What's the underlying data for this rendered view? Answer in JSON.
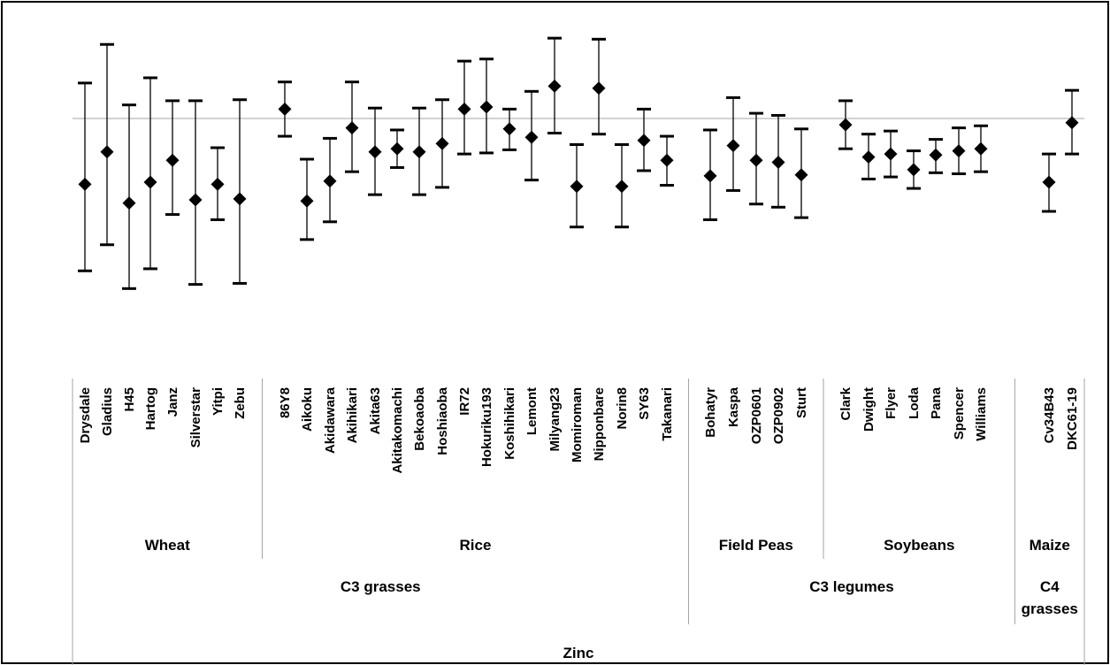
{
  "chart_data": {
    "type": "scatter",
    "style": "dot-with-error-bars",
    "grid": false,
    "reference_line": 0,
    "ylim": [
      -2.1,
      1.3
    ],
    "categories": [
      "Drysdale",
      "Gladius",
      "H45",
      "Hartog",
      "Janz",
      "Silverstar",
      "Yitpi",
      "Zebu",
      "86Y8",
      "Aikoku",
      "Akidawara",
      "Akihikari",
      "Akita63",
      "Akitakomachi",
      "Bekoaoba",
      "Hoshiaoba",
      "IR72",
      "Hokuriku193",
      "Koshihikari",
      "Lemont",
      "Milyang23",
      "Momiroman",
      "Nipponbare",
      "Norin8",
      "SY63",
      "Takanari",
      "Bohatyr",
      "Kaspa",
      "OZP0601",
      "OZP0902",
      "Sturt",
      "Clark",
      "Dwight",
      "Flyer",
      "Loda",
      "Pana",
      "Spencer",
      "Williams",
      "Cv34B43",
      "DKC61-19"
    ],
    "values": [
      -0.63,
      -0.32,
      -0.81,
      -0.61,
      -0.4,
      -0.78,
      -0.63,
      -0.77,
      0.09,
      -0.79,
      -0.6,
      -0.09,
      -0.32,
      -0.29,
      -0.32,
      -0.24,
      0.09,
      0.11,
      -0.1,
      -0.18,
      0.31,
      -0.65,
      0.29,
      -0.65,
      -0.21,
      -0.4,
      -0.55,
      -0.26,
      -0.4,
      -0.42,
      -0.54,
      -0.06,
      -0.37,
      -0.34,
      -0.49,
      -0.35,
      -0.31,
      -0.29,
      -0.61,
      -0.04
    ],
    "lower": [
      -1.46,
      -1.21,
      -1.63,
      -1.44,
      -0.92,
      -1.59,
      -0.97,
      -1.58,
      -0.17,
      -1.16,
      -0.99,
      -0.51,
      -0.73,
      -0.47,
      -0.73,
      -0.66,
      -0.34,
      -0.33,
      -0.3,
      -0.59,
      -0.14,
      -1.04,
      -0.15,
      -1.04,
      -0.5,
      -0.64,
      -0.97,
      -0.69,
      -0.82,
      -0.85,
      -0.95,
      -0.29,
      -0.58,
      -0.56,
      -0.67,
      -0.52,
      -0.53,
      -0.51,
      -0.89,
      -0.34
    ],
    "upper": [
      0.34,
      0.71,
      0.13,
      0.39,
      0.17,
      0.17,
      -0.28,
      0.18,
      0.35,
      -0.39,
      -0.19,
      0.35,
      0.1,
      -0.11,
      0.1,
      0.18,
      0.55,
      0.57,
      0.09,
      0.26,
      0.77,
      -0.25,
      0.76,
      -0.25,
      0.09,
      -0.17,
      -0.11,
      0.2,
      0.05,
      0.03,
      -0.1,
      0.17,
      -0.15,
      -0.12,
      -0.31,
      -0.2,
      -0.09,
      -0.07,
      -0.34,
      0.27
    ],
    "groups_level1": [
      {
        "label": "Wheat",
        "start": 0,
        "end": 7
      },
      {
        "label": "Rice",
        "start": 8,
        "end": 25
      },
      {
        "label": "Field Peas",
        "start": 26,
        "end": 30
      },
      {
        "label": "Soybeans",
        "start": 31,
        "end": 37
      },
      {
        "label": "Maize",
        "start": 38,
        "end": 39
      }
    ],
    "groups_level2": [
      {
        "label": "C3 grasses",
        "start": 0,
        "end": 25
      },
      {
        "label": "C3 legumes",
        "start": 26,
        "end": 37
      },
      {
        "label": "C4 grasses",
        "start": 38,
        "end": 39
      }
    ],
    "groups_level3": [
      {
        "label": "Zinc",
        "start": 0,
        "end": 39
      }
    ]
  }
}
